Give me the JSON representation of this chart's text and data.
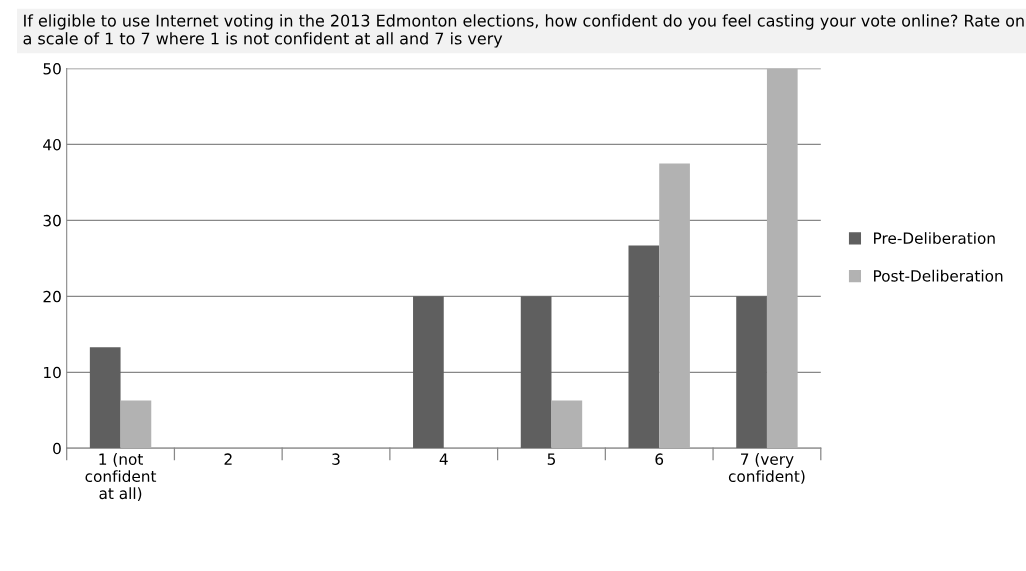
{
  "chart_data": {
    "type": "bar",
    "title": "If eligible to use Internet voting in the 2013 Edmonton elections, how confident do you feel casting your vote online? Rate on a scale of 1 to 7 where 1 is not confident at all and 7 is very",
    "categories": [
      "1 (not\nconfident\nat all)",
      "2",
      "3",
      "4",
      "5",
      "6",
      "7 (very\nconfident)"
    ],
    "series": [
      {
        "name": "Pre-Deliberation",
        "color": "#5f5f5f",
        "values": [
          13.3,
          0,
          0,
          20,
          20,
          26.7,
          20
        ]
      },
      {
        "name": "Post-Deliberation",
        "color": "#b2b2b2",
        "values": [
          6.3,
          0,
          0,
          0,
          6.3,
          37.5,
          50
        ]
      }
    ],
    "ylim": [
      0,
      50
    ],
    "yticks": [
      0,
      10,
      20,
      30,
      40,
      50
    ],
    "grid": "y",
    "legend": "right"
  }
}
